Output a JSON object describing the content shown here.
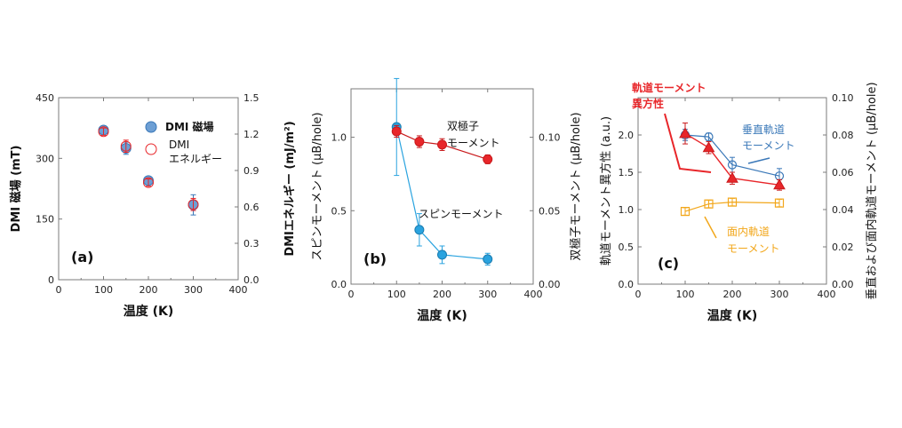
{
  "colors": {
    "blue": "#2aa3df",
    "blue_dark": "#3a78b8",
    "red": "#e8262a",
    "red_dark": "#c8191b",
    "orange": "#f2a71b",
    "axis": "#7b7b7b"
  },
  "chart_data": [
    {
      "panel_label": "(a)",
      "type": "scatter",
      "xlabel": "温度 (K)",
      "ylabel_left": "DMI 磁場 (mT)",
      "ylabel_right": "DMIエネルギー (mJ/m²)",
      "xlim": [
        0,
        400
      ],
      "ylim_left": [
        0,
        450
      ],
      "ylim_right": [
        0,
        1.5
      ],
      "x_ticks": [
        "0",
        "100",
        "200",
        "300",
        "400"
      ],
      "yl_ticks": [
        "0",
        "150",
        "300",
        "450"
      ],
      "yr_ticks": [
        "0.0",
        "0.3",
        "0.6",
        "0.9",
        "1.2",
        "1.5"
      ],
      "legend": [
        "DMI 磁場",
        "DMI",
        "エネルギー"
      ],
      "series": [
        {
          "name": "DMI 磁場",
          "x": [
            100,
            150,
            200,
            300
          ],
          "y": [
            370,
            325,
            245,
            185
          ],
          "err": [
            10,
            15,
            10,
            25
          ]
        },
        {
          "name": "DMI エネルギー",
          "x": [
            100,
            150,
            200,
            300
          ],
          "y": [
            1.22,
            1.1,
            0.8,
            0.62
          ],
          "err": [
            0.03,
            0.05,
            0.03,
            0.05
          ]
        }
      ]
    },
    {
      "panel_label": "(b)",
      "type": "line",
      "xlabel": "温度 (K)",
      "ylabel_left": "スピンモーメント (μB/hole)",
      "ylabel_right": "双極子モーメント (μB/hole)",
      "xlim": [
        0,
        400
      ],
      "ylim_left": [
        0,
        1.33
      ],
      "ylim_right": [
        0,
        0.133
      ],
      "x_ticks": [
        "0",
        "100",
        "200",
        "300",
        "400"
      ],
      "yl_ticks": [
        "0.0",
        "0.5",
        "1.0"
      ],
      "yr_ticks": [
        "0.00",
        "0.05",
        "0.10"
      ],
      "annotations": [
        "双極子",
        "モーメント",
        "スピンモーメント"
      ],
      "series": [
        {
          "name": "スピンモーメント",
          "x": [
            100,
            150,
            200,
            300
          ],
          "y": [
            1.07,
            0.37,
            0.2,
            0.17
          ],
          "err": [
            0.33,
            0.11,
            0.06,
            0.04
          ]
        },
        {
          "name": "双極子モーメント",
          "x": [
            100,
            150,
            200,
            300
          ],
          "y": [
            0.104,
            0.097,
            0.095,
            0.085
          ],
          "err": [
            0.004,
            0.004,
            0.004,
            0.003
          ]
        }
      ]
    },
    {
      "panel_label": "(c)",
      "type": "line",
      "xlabel": "温度 (K)",
      "ylabel_left": "軌道モーメント異方性 (a.u.)",
      "ylabel_right": "垂直および面内軌道モーメント (μB/hole)",
      "xlim": [
        0,
        400
      ],
      "ylim_left": [
        0.0,
        2.5
      ],
      "ylim_right": [
        0.0,
        0.1
      ],
      "x_ticks": [
        "0",
        "100",
        "200",
        "300",
        "400"
      ],
      "yl_ticks": [
        "0.0",
        "0.5",
        "1.0",
        "1.5",
        "2.0"
      ],
      "yr_ticks": [
        "0.00",
        "0.02",
        "0.04",
        "0.06",
        "0.08",
        "0.10"
      ],
      "annotations": [
        "軌道モーメント",
        "異方性",
        "垂直軌道",
        "モーメント",
        "面内軌道",
        "モーメント"
      ],
      "series": [
        {
          "name": "軌道モーメント異方性",
          "x": [
            100,
            150,
            200,
            300
          ],
          "y": [
            2.02,
            1.83,
            1.42,
            1.33
          ],
          "err": [
            0.14,
            0.08,
            0.08,
            0.07
          ]
        },
        {
          "name": "垂直軌道モーメント",
          "x": [
            100,
            150,
            200,
            300
          ],
          "y": [
            0.08,
            0.079,
            0.064,
            0.058
          ],
          "err": [
            0.003,
            0.002,
            0.004,
            0.004
          ]
        },
        {
          "name": "面内軌道モーメント",
          "x": [
            100,
            150,
            200,
            300
          ],
          "y": [
            0.039,
            0.043,
            0.044,
            0.0435
          ],
          "err": [
            0.002,
            0.002,
            0.002,
            0.002
          ]
        }
      ]
    }
  ]
}
